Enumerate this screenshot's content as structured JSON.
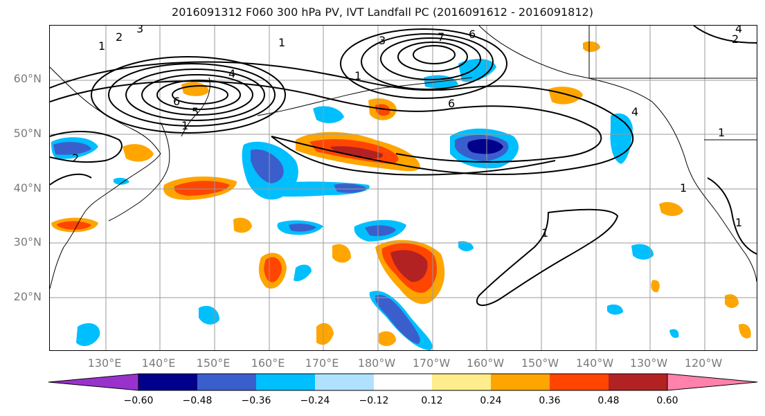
{
  "title": "2016091312 F060 300 hPa PV, IVT Landfall PC (2016091612 - 2016091812)",
  "lat_labels": [
    "60°N",
    "50°N",
    "40°N",
    "30°N",
    "20°N"
  ],
  "lon_labels": [
    "130°E",
    "140°E",
    "150°E",
    "160°E",
    "170°E",
    "180°W",
    "170°W",
    "160°W",
    "150°W",
    "140°W",
    "130°W",
    "120°W"
  ],
  "contour_labels": [
    "1",
    "2",
    "3",
    "4",
    "5",
    "6",
    "7"
  ],
  "colorbar": {
    "ticks": [
      "−0.60",
      "−0.48",
      "−0.36",
      "−0.24",
      "−0.12",
      "0.12",
      "0.24",
      "0.36",
      "0.48",
      "0.60"
    ],
    "colors": [
      "#9932CC",
      "#00008B",
      "#3A5FCD",
      "#00BFFF",
      "#B0E2FF",
      "#FFFFFF",
      "#FFEC8B",
      "#FFA500",
      "#FF4500",
      "#B22222",
      "#FF82AB"
    ]
  },
  "colors": {
    "contour": "#000000",
    "grid": "#9a9a9a",
    "coast": "#000000",
    "label_gray": "#7a7a7a"
  }
}
